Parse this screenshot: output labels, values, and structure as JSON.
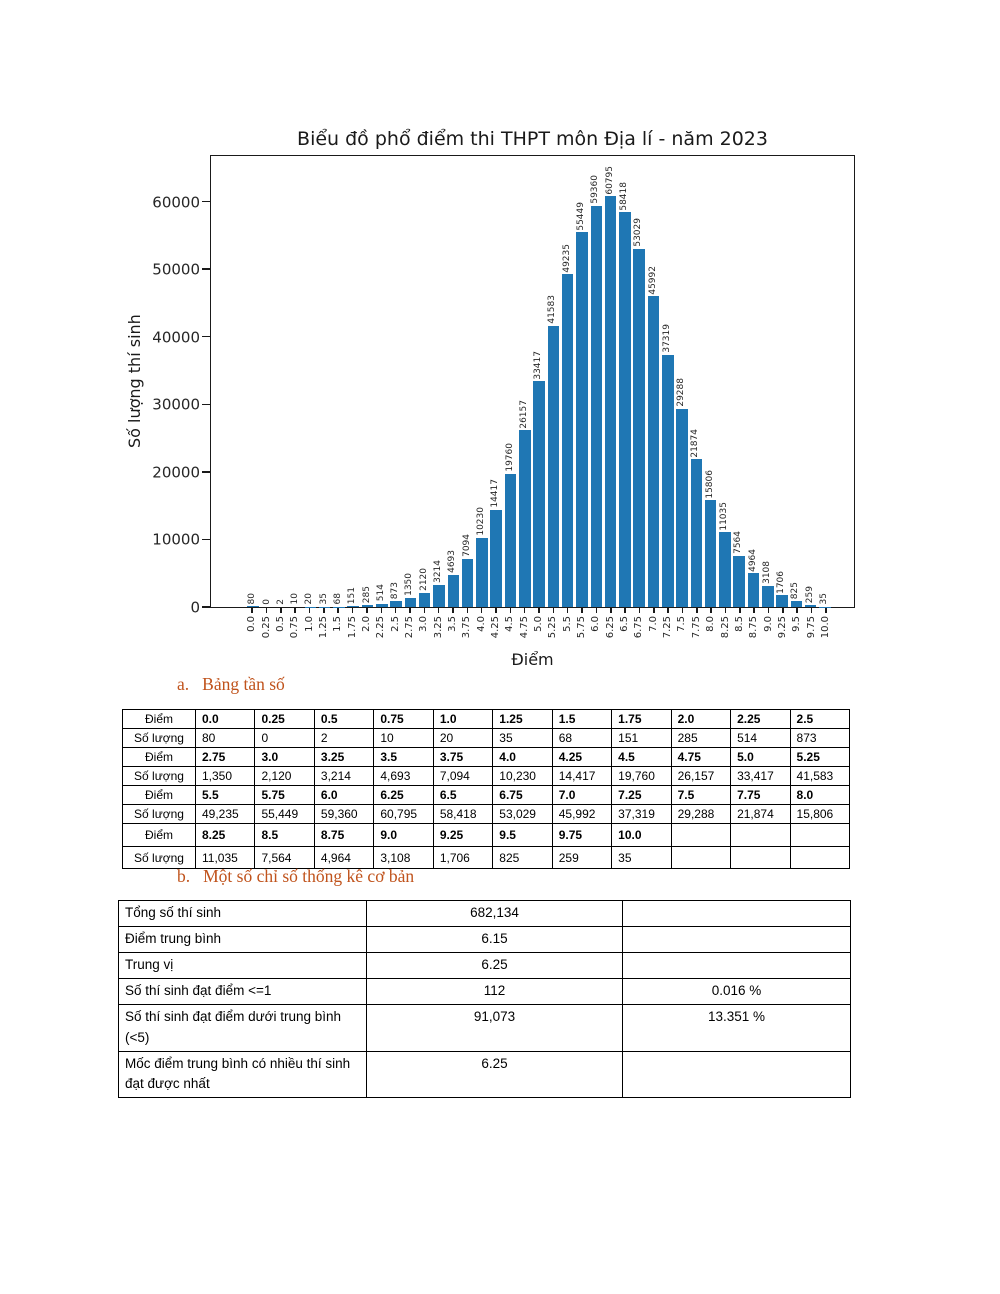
{
  "chart_data": {
    "type": "bar",
    "title": "Biểu đồ phổ điểm thi THPT môn Địa lí - năm 2023",
    "xlabel": "Điểm",
    "ylabel": "Số lượng thí sinh",
    "categories": [
      "0.0",
      "0.25",
      "0.5",
      "0.75",
      "1.0",
      "1.25",
      "1.5",
      "1.75",
      "2.0",
      "2.25",
      "2.5",
      "2.75",
      "3.0",
      "3.25",
      "3.5",
      "3.75",
      "4.0",
      "4.25",
      "4.5",
      "4.75",
      "5.0",
      "5.25",
      "5.5",
      "5.75",
      "6.0",
      "6.25",
      "6.5",
      "6.75",
      "7.0",
      "7.25",
      "7.5",
      "7.75",
      "8.0",
      "8.25",
      "8.5",
      "8.75",
      "9.0",
      "9.25",
      "9.5",
      "9.75",
      "10.0"
    ],
    "values": [
      80,
      0,
      2,
      10,
      20,
      35,
      68,
      151,
      285,
      514,
      873,
      1350,
      2120,
      3214,
      4693,
      7094,
      10230,
      14417,
      19760,
      26157,
      33417,
      41583,
      49235,
      55449,
      59360,
      60795,
      58418,
      53029,
      45992,
      37319,
      29288,
      21874,
      15806,
      11035,
      7564,
      4964,
      3108,
      1706,
      825,
      259,
      35
    ],
    "y_ticks": [
      "0",
      "10000",
      "20000",
      "30000",
      "40000",
      "50000",
      "60000"
    ],
    "ylim": [
      0,
      66600
    ],
    "bar_color": "#1f77b4",
    "grid": false,
    "legend": null
  },
  "sections": {
    "a": {
      "label": "a.",
      "title": "Bảng tần số"
    },
    "b": {
      "label": "b.",
      "title": "Một số chỉ số thống kê cơ bản"
    }
  },
  "freq_table": {
    "row_header_diem": "Điểm",
    "row_header_soluong": "Số lượng",
    "columns_per_row": 11,
    "rows": [
      {
        "diem": [
          "0.0",
          "0.25",
          "0.5",
          "0.75",
          "1.0",
          "1.25",
          "1.5",
          "1.75",
          "2.0",
          "2.25",
          "2.5"
        ],
        "soluong": [
          "80",
          "0",
          "2",
          "10",
          "20",
          "35",
          "68",
          "151",
          "285",
          "514",
          "873"
        ]
      },
      {
        "diem": [
          "2.75",
          "3.0",
          "3.25",
          "3.5",
          "3.75",
          "4.0",
          "4.25",
          "4.5",
          "4.75",
          "5.0",
          "5.25"
        ],
        "soluong": [
          "1,350",
          "2,120",
          "3,214",
          "4,693",
          "7,094",
          "10,230",
          "14,417",
          "19,760",
          "26,157",
          "33,417",
          "41,583"
        ]
      },
      {
        "diem": [
          "5.5",
          "5.75",
          "6.0",
          "6.25",
          "6.5",
          "6.75",
          "7.0",
          "7.25",
          "7.5",
          "7.75",
          "8.0"
        ],
        "soluong": [
          "49,235",
          "55,449",
          "59,360",
          "60,795",
          "58,418",
          "53,029",
          "45,992",
          "37,319",
          "29,288",
          "21,874",
          "15,806"
        ]
      },
      {
        "diem": [
          "8.25",
          "8.5",
          "8.75",
          "9.0",
          "9.25",
          "9.5",
          "9.75",
          "10.0"
        ],
        "soluong": [
          "11,035",
          "7,564",
          "4,964",
          "3,108",
          "1,706",
          "825",
          "259",
          "35"
        ]
      }
    ]
  },
  "stats_table": {
    "rows": [
      {
        "label": "Tổng số thí sinh",
        "value": "682,134",
        "percent": ""
      },
      {
        "label": "Điểm trung bình",
        "value": "6.15",
        "percent": ""
      },
      {
        "label": "Trung vị",
        "value": "6.25",
        "percent": ""
      },
      {
        "label": "Số thí sinh đạt điểm <=1",
        "value": "112",
        "percent": "0.016 %"
      },
      {
        "label": "Số thí sinh đạt điểm dưới trung bình (<5)",
        "value": "91,073",
        "percent": "13.351 %"
      },
      {
        "label": "Mốc điểm trung bình có nhiều thí sinh đạt được nhất",
        "value": "6.25",
        "percent": ""
      }
    ]
  }
}
